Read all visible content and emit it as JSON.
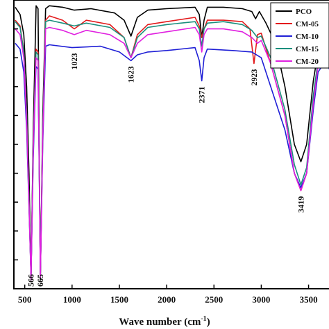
{
  "chart_data": {
    "type": "line",
    "title": "",
    "xlabel": "Wave number (cm",
    "xlabel_sup": "-1",
    "xlabel_suffix": ")",
    "ylabel": "",
    "xlim": [
      385,
      3760
    ],
    "ylim": [
      0,
      1
    ],
    "x_ticks": [
      500,
      1000,
      1500,
      2000,
      2500,
      3000,
      3500
    ],
    "x_tick_labels": [
      "500",
      "1000",
      "1500",
      "2000",
      "2500",
      "3000",
      "3500"
    ],
    "y_ticks": [
      0.1,
      0.2,
      0.3,
      0.4,
      0.5,
      0.6,
      0.7,
      0.8,
      0.9
    ],
    "y_ticks_labeled": false,
    "grid": false,
    "legend_position": "top-right",
    "annotations": [
      {
        "text": "566",
        "x": 566
      },
      {
        "text": "665",
        "x": 665
      },
      {
        "text": "1023",
        "x": 1023
      },
      {
        "text": "1623",
        "x": 1623
      },
      {
        "text": "2371",
        "x": 2371
      },
      {
        "text": "2923",
        "x": 2923
      },
      {
        "text": "3419",
        "x": 3419
      }
    ],
    "series": [
      {
        "name": "PCO",
        "color": "#000000",
        "points": [
          [
            400,
            0.975
          ],
          [
            450,
            0.95
          ],
          [
            490,
            0.88
          ],
          [
            520,
            0.7
          ],
          [
            545,
            0.4
          ],
          [
            566,
            0.03
          ],
          [
            590,
            0.55
          ],
          [
            620,
            0.98
          ],
          [
            640,
            0.97
          ],
          [
            665,
            0.03
          ],
          [
            690,
            0.6
          ],
          [
            720,
            0.97
          ],
          [
            760,
            0.98
          ],
          [
            900,
            0.975
          ],
          [
            1023,
            0.965
          ],
          [
            1200,
            0.97
          ],
          [
            1450,
            0.955
          ],
          [
            1550,
            0.93
          ],
          [
            1623,
            0.875
          ],
          [
            1690,
            0.94
          ],
          [
            1800,
            0.965
          ],
          [
            2000,
            0.97
          ],
          [
            2300,
            0.975
          ],
          [
            2345,
            0.95
          ],
          [
            2371,
            0.87
          ],
          [
            2395,
            0.93
          ],
          [
            2430,
            0.975
          ],
          [
            2600,
            0.975
          ],
          [
            2800,
            0.97
          ],
          [
            2900,
            0.96
          ],
          [
            2940,
            0.935
          ],
          [
            2980,
            0.96
          ],
          [
            3050,
            0.92
          ],
          [
            3150,
            0.85
          ],
          [
            3250,
            0.7
          ],
          [
            3350,
            0.5
          ],
          [
            3419,
            0.44
          ],
          [
            3480,
            0.5
          ],
          [
            3550,
            0.72
          ],
          [
            3600,
            0.82
          ],
          [
            3640,
            0.83
          ],
          [
            3680,
            0.86
          ],
          [
            3720,
            0.83
          ],
          [
            3760,
            0.85
          ]
        ]
      },
      {
        "name": "CM-05",
        "color": "#e31a1c",
        "points": [
          [
            400,
            0.93
          ],
          [
            450,
            0.91
          ],
          [
            490,
            0.82
          ],
          [
            520,
            0.6
          ],
          [
            545,
            0.3
          ],
          [
            566,
            0.04
          ],
          [
            590,
            0.5
          ],
          [
            618,
            0.83
          ],
          [
            640,
            0.82
          ],
          [
            665,
            0.05
          ],
          [
            690,
            0.55
          ],
          [
            720,
            0.93
          ],
          [
            760,
            0.945
          ],
          [
            900,
            0.93
          ],
          [
            1023,
            0.9
          ],
          [
            1150,
            0.93
          ],
          [
            1400,
            0.915
          ],
          [
            1550,
            0.87
          ],
          [
            1623,
            0.8
          ],
          [
            1690,
            0.88
          ],
          [
            1800,
            0.915
          ],
          [
            2000,
            0.925
          ],
          [
            2300,
            0.94
          ],
          [
            2345,
            0.91
          ],
          [
            2371,
            0.87
          ],
          [
            2395,
            0.9
          ],
          [
            2430,
            0.93
          ],
          [
            2600,
            0.93
          ],
          [
            2800,
            0.925
          ],
          [
            2880,
            0.9
          ],
          [
            2923,
            0.78
          ],
          [
            2960,
            0.88
          ],
          [
            3000,
            0.885
          ],
          [
            3100,
            0.78
          ],
          [
            3250,
            0.6
          ],
          [
            3350,
            0.4
          ],
          [
            3419,
            0.34
          ],
          [
            3480,
            0.4
          ],
          [
            3550,
            0.65
          ],
          [
            3600,
            0.78
          ],
          [
            3640,
            0.8
          ],
          [
            3680,
            0.84
          ],
          [
            3720,
            0.8
          ],
          [
            3760,
            0.82
          ]
        ]
      },
      {
        "name": "CM-10",
        "color": "#1f1fd6",
        "points": [
          [
            400,
            0.85
          ],
          [
            450,
            0.83
          ],
          [
            490,
            0.75
          ],
          [
            520,
            0.55
          ],
          [
            545,
            0.28
          ],
          [
            566,
            0.04
          ],
          [
            590,
            0.45
          ],
          [
            618,
            0.77
          ],
          [
            640,
            0.76
          ],
          [
            665,
            0.05
          ],
          [
            690,
            0.5
          ],
          [
            720,
            0.84
          ],
          [
            760,
            0.845
          ],
          [
            1000,
            0.835
          ],
          [
            1300,
            0.84
          ],
          [
            1500,
            0.82
          ],
          [
            1623,
            0.79
          ],
          [
            1690,
            0.81
          ],
          [
            1800,
            0.82
          ],
          [
            2000,
            0.825
          ],
          [
            2300,
            0.835
          ],
          [
            2345,
            0.79
          ],
          [
            2371,
            0.72
          ],
          [
            2395,
            0.8
          ],
          [
            2430,
            0.83
          ],
          [
            2700,
            0.825
          ],
          [
            2900,
            0.82
          ],
          [
            3000,
            0.8
          ],
          [
            3100,
            0.7
          ],
          [
            3250,
            0.55
          ],
          [
            3350,
            0.4
          ],
          [
            3419,
            0.35
          ],
          [
            3480,
            0.4
          ],
          [
            3550,
            0.62
          ],
          [
            3600,
            0.75
          ],
          [
            3640,
            0.77
          ],
          [
            3680,
            0.8
          ],
          [
            3720,
            0.76
          ],
          [
            3760,
            0.78
          ]
        ]
      },
      {
        "name": "CM-15",
        "color": "#1a8f7d",
        "points": [
          [
            400,
            0.925
          ],
          [
            450,
            0.905
          ],
          [
            490,
            0.82
          ],
          [
            520,
            0.6
          ],
          [
            545,
            0.3
          ],
          [
            566,
            0.04
          ],
          [
            590,
            0.5
          ],
          [
            618,
            0.82
          ],
          [
            640,
            0.81
          ],
          [
            665,
            0.05
          ],
          [
            690,
            0.55
          ],
          [
            720,
            0.925
          ],
          [
            760,
            0.93
          ],
          [
            900,
            0.92
          ],
          [
            1023,
            0.91
          ],
          [
            1150,
            0.92
          ],
          [
            1400,
            0.905
          ],
          [
            1550,
            0.87
          ],
          [
            1623,
            0.8
          ],
          [
            1690,
            0.87
          ],
          [
            1800,
            0.905
          ],
          [
            2000,
            0.915
          ],
          [
            2300,
            0.925
          ],
          [
            2345,
            0.9
          ],
          [
            2371,
            0.84
          ],
          [
            2395,
            0.9
          ],
          [
            2430,
            0.92
          ],
          [
            2600,
            0.925
          ],
          [
            2800,
            0.915
          ],
          [
            2900,
            0.895
          ],
          [
            2960,
            0.87
          ],
          [
            3000,
            0.875
          ],
          [
            3100,
            0.8
          ],
          [
            3250,
            0.62
          ],
          [
            3350,
            0.43
          ],
          [
            3419,
            0.36
          ],
          [
            3480,
            0.42
          ],
          [
            3550,
            0.67
          ],
          [
            3600,
            0.79
          ],
          [
            3640,
            0.81
          ],
          [
            3680,
            0.85
          ],
          [
            3720,
            0.81
          ],
          [
            3760,
            0.83
          ]
        ]
      },
      {
        "name": "CM-20",
        "color": "#e020e0",
        "points": [
          [
            400,
            0.9
          ],
          [
            450,
            0.88
          ],
          [
            490,
            0.8
          ],
          [
            520,
            0.58
          ],
          [
            545,
            0.29
          ],
          [
            566,
            0.03
          ],
          [
            590,
            0.48
          ],
          [
            618,
            0.8
          ],
          [
            640,
            0.79
          ],
          [
            665,
            0.04
          ],
          [
            690,
            0.52
          ],
          [
            720,
            0.9
          ],
          [
            760,
            0.905
          ],
          [
            900,
            0.895
          ],
          [
            1023,
            0.88
          ],
          [
            1150,
            0.895
          ],
          [
            1400,
            0.88
          ],
          [
            1550,
            0.85
          ],
          [
            1623,
            0.8
          ],
          [
            1690,
            0.85
          ],
          [
            1800,
            0.88
          ],
          [
            2000,
            0.89
          ],
          [
            2300,
            0.905
          ],
          [
            2345,
            0.88
          ],
          [
            2371,
            0.82
          ],
          [
            2395,
            0.88
          ],
          [
            2430,
            0.9
          ],
          [
            2600,
            0.9
          ],
          [
            2800,
            0.89
          ],
          [
            2900,
            0.87
          ],
          [
            2960,
            0.85
          ],
          [
            3000,
            0.86
          ],
          [
            3100,
            0.78
          ],
          [
            3250,
            0.6
          ],
          [
            3350,
            0.4
          ],
          [
            3419,
            0.34
          ],
          [
            3480,
            0.4
          ],
          [
            3550,
            0.64
          ],
          [
            3600,
            0.77
          ],
          [
            3640,
            0.79
          ],
          [
            3680,
            0.83
          ],
          [
            3720,
            0.79
          ],
          [
            3760,
            0.81
          ]
        ]
      }
    ]
  }
}
